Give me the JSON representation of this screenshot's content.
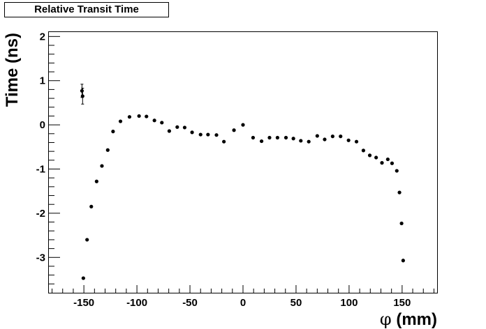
{
  "chart_data": {
    "type": "scatter",
    "title": "Relative Transit Time",
    "xlabel_symbol": "φ",
    "xlabel_text": " (mm)",
    "ylabel": "Time (ns)",
    "xlim": [
      -183,
      183
    ],
    "ylim": [
      -3.8,
      2.1
    ],
    "x_ticks": [
      -150,
      -100,
      -50,
      0,
      50,
      100,
      150
    ],
    "y_ticks": [
      -3,
      -2,
      -1,
      0,
      1,
      2
    ],
    "grid": false,
    "legend": "none",
    "marker_color": "#000000",
    "series": [
      {
        "points": [
          {
            "x": -151.8,
            "y": 0.77,
            "err": 0.15
          },
          {
            "x": -151.2,
            "y": 0.65,
            "err": 0.18
          },
          {
            "x": -150.5,
            "y": -3.47,
            "err": 0.03
          },
          {
            "x": -147,
            "y": -2.6,
            "err": 0.03
          },
          {
            "x": -143,
            "y": -1.85,
            "err": 0.03
          },
          {
            "x": -138,
            "y": -1.28,
            "err": 0.02
          },
          {
            "x": -133,
            "y": -0.93,
            "err": 0.02
          },
          {
            "x": -127.5,
            "y": -0.57,
            "err": 0.02
          },
          {
            "x": -122.5,
            "y": -0.15,
            "err": 0.02
          },
          {
            "x": -115.5,
            "y": 0.08,
            "err": 0.02
          },
          {
            "x": -107,
            "y": 0.18,
            "err": 0.02
          },
          {
            "x": -98,
            "y": 0.2,
            "err": 0.02
          },
          {
            "x": -91,
            "y": 0.19,
            "err": 0.02
          },
          {
            "x": -83.5,
            "y": 0.1,
            "err": 0.02
          },
          {
            "x": -76.5,
            "y": 0.05,
            "err": 0.02
          },
          {
            "x": -69.5,
            "y": -0.14,
            "err": 0.02
          },
          {
            "x": -62,
            "y": -0.05,
            "err": 0.02
          },
          {
            "x": -55,
            "y": -0.06,
            "err": 0.02
          },
          {
            "x": -48,
            "y": -0.17,
            "err": 0.02
          },
          {
            "x": -40,
            "y": -0.22,
            "err": 0.02
          },
          {
            "x": -33,
            "y": -0.22,
            "err": 0.02
          },
          {
            "x": -25,
            "y": -0.23,
            "err": 0.02
          },
          {
            "x": -18,
            "y": -0.38,
            "err": 0.02
          },
          {
            "x": -8.5,
            "y": -0.12,
            "err": 0.02
          },
          {
            "x": 0,
            "y": 0.0,
            "err": 0.01
          },
          {
            "x": 9.5,
            "y": -0.29,
            "err": 0.02
          },
          {
            "x": 17.5,
            "y": -0.37,
            "err": 0.02
          },
          {
            "x": 25,
            "y": -0.29,
            "err": 0.02
          },
          {
            "x": 32.5,
            "y": -0.29,
            "err": 0.02
          },
          {
            "x": 40.5,
            "y": -0.29,
            "err": 0.02
          },
          {
            "x": 47.5,
            "y": -0.31,
            "err": 0.02
          },
          {
            "x": 54.5,
            "y": -0.36,
            "err": 0.02
          },
          {
            "x": 62,
            "y": -0.38,
            "err": 0.02
          },
          {
            "x": 70,
            "y": -0.25,
            "err": 0.02
          },
          {
            "x": 77,
            "y": -0.33,
            "err": 0.02
          },
          {
            "x": 84.5,
            "y": -0.26,
            "err": 0.02
          },
          {
            "x": 92,
            "y": -0.26,
            "err": 0.02
          },
          {
            "x": 99.5,
            "y": -0.35,
            "err": 0.02
          },
          {
            "x": 107,
            "y": -0.38,
            "err": 0.02
          },
          {
            "x": 113.5,
            "y": -0.58,
            "err": 0.02
          },
          {
            "x": 119.5,
            "y": -0.69,
            "err": 0.02
          },
          {
            "x": 125.5,
            "y": -0.74,
            "err": 0.02
          },
          {
            "x": 131,
            "y": -0.86,
            "err": 0.02
          },
          {
            "x": 136.5,
            "y": -0.78,
            "err": 0.02
          },
          {
            "x": 140.5,
            "y": -0.87,
            "err": 0.02
          },
          {
            "x": 145,
            "y": -1.04,
            "err": 0.02
          },
          {
            "x": 147.5,
            "y": -1.53,
            "err": 0.03
          },
          {
            "x": 149.5,
            "y": -2.23,
            "err": 0.03
          },
          {
            "x": 151,
            "y": -3.07,
            "err": 0.04
          }
        ]
      }
    ]
  }
}
